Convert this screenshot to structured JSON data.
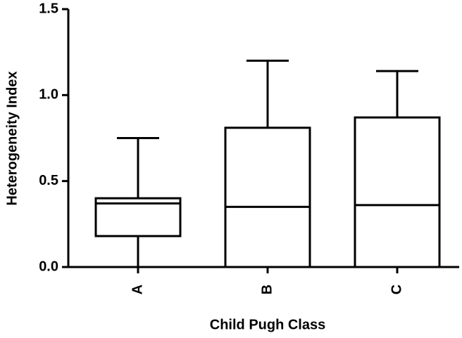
{
  "chart_data": {
    "type": "box",
    "x_label": "Child Pugh Class",
    "y_label": "Heterogeneity Index",
    "categories": [
      "A",
      "B",
      "C"
    ],
    "min": [
      0,
      0,
      0
    ],
    "q1": [
      0.18,
      0,
      0
    ],
    "median": [
      0.37,
      0.35,
      0.36
    ],
    "q3": [
      0.4,
      0.81,
      0.87
    ],
    "max": [
      0.75,
      1.2,
      1.14
    ],
    "ylim": [
      0,
      1.5
    ],
    "yticks": [
      {
        "value": 0,
        "label": "0.0"
      },
      0.5,
      {
        "value": 1,
        "label": "1.0"
      },
      1.5
    ]
  }
}
